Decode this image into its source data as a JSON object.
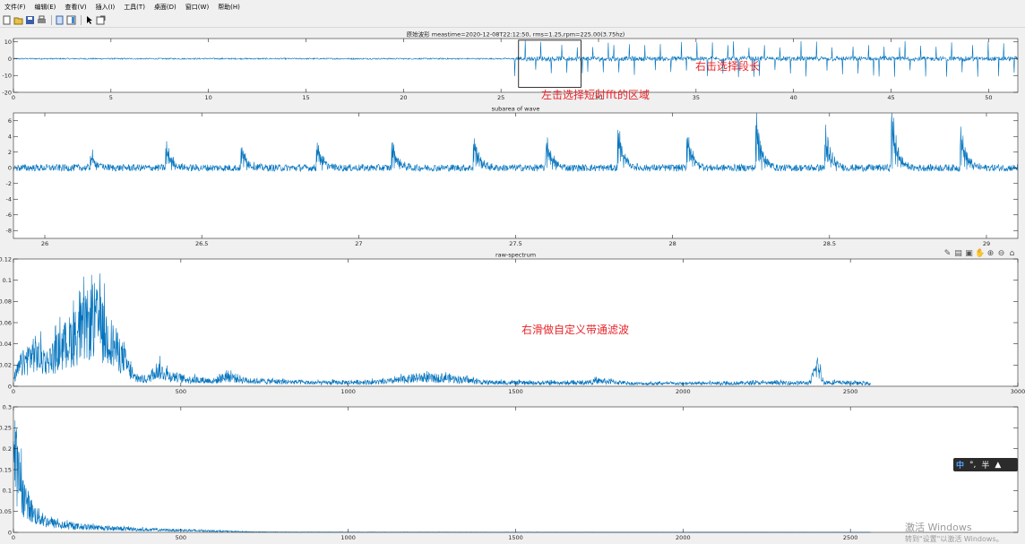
{
  "menu": [
    "文件(F)",
    "编辑(E)",
    "查看(V)",
    "插入(I)",
    "工具(T)",
    "桌面(D)",
    "窗口(W)",
    "帮助(H)"
  ],
  "toolbar_icons": [
    "new-file-icon",
    "open-folder-icon",
    "save-icon",
    "print-icon",
    "link-plot-icon",
    "insert-colorbar-icon",
    "select-pointer-icon",
    "edit-plot-icon"
  ],
  "axes_toolbar_icons": [
    "brush-icon",
    "datatip-icon",
    "export-icon",
    "pan-icon",
    "zoom-in-icon",
    "zoom-out-icon",
    "home-icon"
  ],
  "annotations": {
    "right_click_select_length": "右击选择段长",
    "left_click_select_region": "左击选择短时fft的区域",
    "right_slide_bandpass": "右滑做自定义带通滤波"
  },
  "ime": {
    "chinese": "中",
    "punct": "°,",
    "half": "半"
  },
  "watermark": {
    "line1": "激活 Windows",
    "line2": "转到\"设置\"以激活 Windows。"
  },
  "chart_data": [
    {
      "type": "line",
      "title": "原始波形 meastime=2020-12-08T22:12:50, rms=1.25,rpm=225.00(3.75hz)",
      "xlim": [
        0,
        51.5
      ],
      "ylim": [
        -20,
        12
      ],
      "xticks": [
        0,
        5,
        10,
        15,
        20,
        25,
        30,
        35,
        40,
        45,
        50
      ],
      "yticks": [
        -20,
        -10,
        0,
        10
      ],
      "signal": {
        "baseline_noise": 0.4,
        "impulse_start": 25.7,
        "impulse_period": 0.2667,
        "impulse_amp": 11
      },
      "selection": {
        "x": [
          25.9,
          29.1
        ],
        "y": [
          -17,
          11
        ]
      },
      "color": "#0072BD"
    },
    {
      "type": "line",
      "title": "subarea of wave",
      "xlim": [
        25.9,
        29.1
      ],
      "ylim": [
        -9,
        7
      ],
      "xticks": [
        26,
        26.5,
        27,
        27.5,
        28,
        28.5,
        29
      ],
      "yticks": [
        -8,
        -6,
        -4,
        -2,
        0,
        2,
        4,
        6
      ],
      "impulses": [
        {
          "x": 26.15,
          "up": 2.2,
          "down": -1.5
        },
        {
          "x": 26.39,
          "up": 2.6,
          "down": -3.2
        },
        {
          "x": 26.63,
          "up": 2.8,
          "down": -2.6
        },
        {
          "x": 26.87,
          "up": 3.0,
          "down": -3.5
        },
        {
          "x": 27.11,
          "up": 3.2,
          "down": -3.0
        },
        {
          "x": 27.37,
          "up": 3.5,
          "down": -4.0
        },
        {
          "x": 27.6,
          "up": 4.5,
          "down": -3.8
        },
        {
          "x": 27.83,
          "up": 5.2,
          "down": -4.8
        },
        {
          "x": 28.05,
          "up": 4.7,
          "down": -4.4
        },
        {
          "x": 28.27,
          "up": 5.8,
          "down": -7.3
        },
        {
          "x": 28.49,
          "up": 3.2,
          "down": -5.5
        },
        {
          "x": 28.7,
          "up": 6.6,
          "down": -8.5
        },
        {
          "x": 28.92,
          "up": 4.5,
          "down": -5.8
        }
      ],
      "color": "#0072BD"
    },
    {
      "type": "line",
      "title": "raw-spectrum",
      "xlim": [
        0,
        3000
      ],
      "ylim": [
        0,
        0.12
      ],
      "xticks": [
        0,
        500,
        1000,
        1500,
        2000,
        2500,
        3000
      ],
      "yticks": [
        0,
        0.02,
        0.04,
        0.06,
        0.08,
        0.1,
        0.12
      ],
      "x_end": 2560,
      "envelope": [
        [
          0,
          0.01
        ],
        [
          20,
          0.03
        ],
        [
          60,
          0.05
        ],
        [
          100,
          0.035
        ],
        [
          150,
          0.06
        ],
        [
          200,
          0.08
        ],
        [
          240,
          0.1
        ],
        [
          270,
          0.08
        ],
        [
          300,
          0.06
        ],
        [
          330,
          0.04
        ],
        [
          360,
          0.012
        ],
        [
          400,
          0.01
        ],
        [
          430,
          0.025
        ],
        [
          470,
          0.015
        ],
        [
          520,
          0.01
        ],
        [
          600,
          0.008
        ],
        [
          640,
          0.015
        ],
        [
          700,
          0.008
        ],
        [
          800,
          0.007
        ],
        [
          900,
          0.005
        ],
        [
          1000,
          0.006
        ],
        [
          1100,
          0.006
        ],
        [
          1200,
          0.012
        ],
        [
          1300,
          0.012
        ],
        [
          1400,
          0.006
        ],
        [
          1500,
          0.005
        ],
        [
          1600,
          0.005
        ],
        [
          1700,
          0.005
        ],
        [
          1750,
          0.008
        ],
        [
          1800,
          0.006
        ],
        [
          1850,
          0.004
        ],
        [
          2000,
          0.004
        ],
        [
          2200,
          0.005
        ],
        [
          2380,
          0.005
        ],
        [
          2400,
          0.03
        ],
        [
          2420,
          0.006
        ],
        [
          2500,
          0.005
        ],
        [
          2560,
          0.004
        ]
      ],
      "color": "#0072BD"
    },
    {
      "type": "line",
      "title": "",
      "xlim": [
        0,
        3000
      ],
      "ylim": [
        0,
        0.3
      ],
      "xticks": [
        0,
        500,
        1000,
        1500,
        2000,
        2500
      ],
      "yticks": [
        0,
        0.05,
        0.1,
        0.15,
        0.2,
        0.25,
        0.3
      ],
      "x_end": 2560,
      "envelope": [
        [
          0,
          0.28
        ],
        [
          10,
          0.25
        ],
        [
          20,
          0.18
        ],
        [
          40,
          0.11
        ],
        [
          60,
          0.07
        ],
        [
          100,
          0.04
        ],
        [
          150,
          0.025
        ],
        [
          220,
          0.02
        ],
        [
          300,
          0.015
        ],
        [
          400,
          0.01
        ],
        [
          500,
          0.008
        ],
        [
          600,
          0.005
        ],
        [
          700,
          0.002
        ],
        [
          800,
          0.001
        ],
        [
          1000,
          0.0008
        ],
        [
          1500,
          0.0005
        ],
        [
          2000,
          0.0004
        ],
        [
          2560,
          0.0003
        ]
      ],
      "color": "#0072BD"
    }
  ]
}
